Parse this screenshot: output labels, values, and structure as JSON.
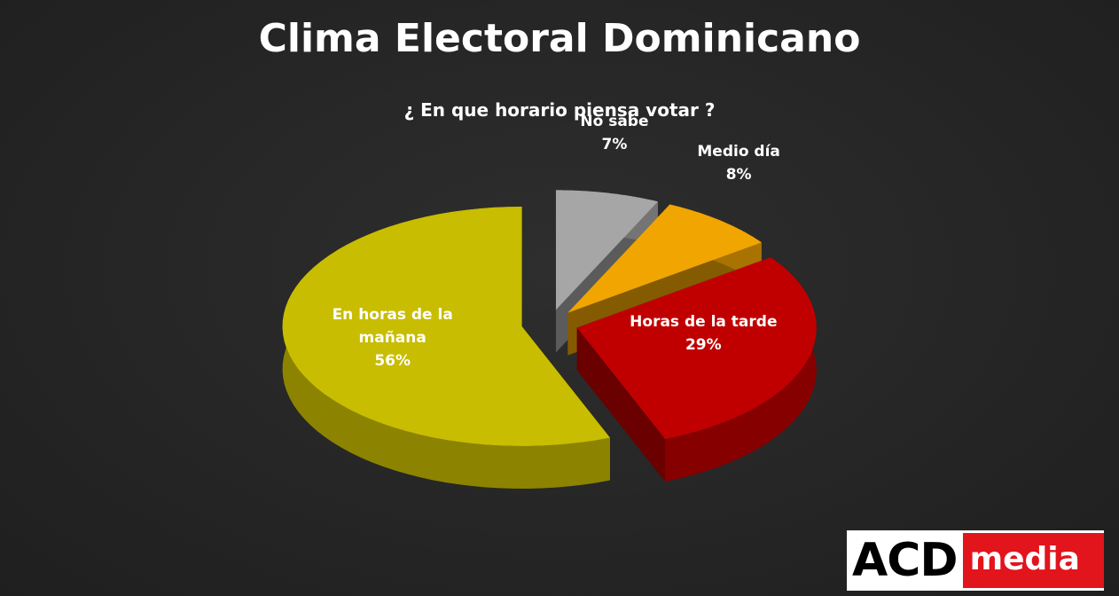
{
  "chart_data": {
    "type": "pie",
    "title": "Clima Electoral Dominicano",
    "subtitle": "¿ En que horario piensa votar ?",
    "categories": [
      "No sabe",
      "Medio día",
      "Horas de la tarde",
      "En horas de la mañana"
    ],
    "values": [
      7,
      8,
      29,
      56
    ],
    "value_labels": [
      "7%",
      "8%",
      "29%",
      "56%"
    ],
    "colors": [
      "#a6a6a6",
      "#f0a500",
      "#c00000",
      "#c8bd00"
    ]
  },
  "logo": {
    "text": "ACD",
    "tag": "media"
  }
}
